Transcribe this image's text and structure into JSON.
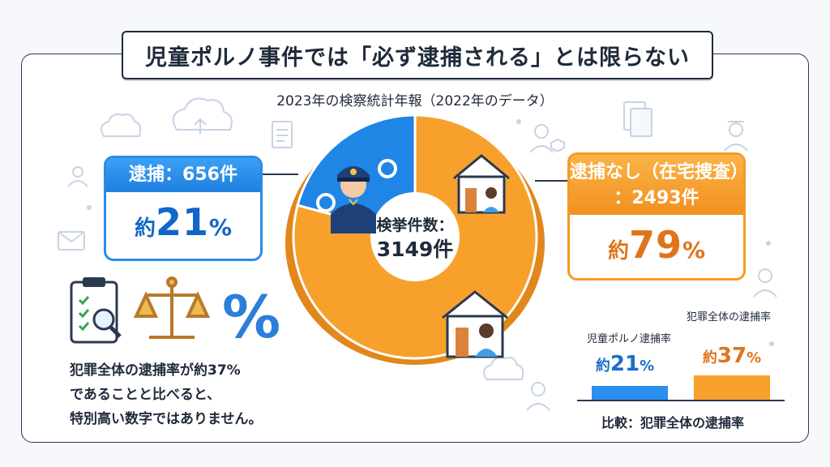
{
  "title": "児童ポルノ事件では「必ず逮捕される」とは限らない",
  "subtitle": "2023年の検察統計年報（2022年のデータ）",
  "arrest_card": {
    "label": "逮捕：656件",
    "prefix": "約",
    "value": "21",
    "unit": "%"
  },
  "home_card": {
    "label_line1": "逮捕なし（在宅捜査）",
    "label_line2": "：2493件",
    "prefix": "約",
    "value": "79",
    "unit": "%"
  },
  "center": {
    "line1": "検挙件数：",
    "line2": "3149件"
  },
  "note": {
    "line1": "犯罪全体の逮捕率が約37%",
    "line2": "であることと比べると、",
    "line3": "特別高い数字ではありません。"
  },
  "comparison": {
    "footer": "比較：犯罪全体の逮捕率",
    "bars": [
      {
        "label": "児童ポルノ逮捕率",
        "prefix": "約",
        "value": "21",
        "unit": "%"
      },
      {
        "label": "犯罪全体の逮捕率",
        "prefix": "約",
        "value": "37",
        "unit": "%"
      }
    ]
  },
  "colors": {
    "arrest_blue": "#1f86e6",
    "home_orange": "#f7a12c",
    "dark": "#1f2a3a"
  },
  "chart_data": [
    {
      "type": "pie",
      "subtitle": "2023年の検察統計年報（2022年のデータ）",
      "total": 3149,
      "slices": [
        {
          "name": "逮捕",
          "count": 656,
          "percent": 21,
          "color": "#1f86e6"
        },
        {
          "name": "逮捕なし（在宅捜査）",
          "count": 2493,
          "percent": 79,
          "color": "#f7a12c"
        }
      ]
    },
    {
      "type": "bar",
      "categories": [
        "児童ポルノ逮捕率",
        "犯罪全体の逮捕率"
      ],
      "values": [
        21,
        37
      ],
      "unit": "%",
      "colors": [
        "#2a8ff0",
        "#f7a12c"
      ]
    }
  ]
}
